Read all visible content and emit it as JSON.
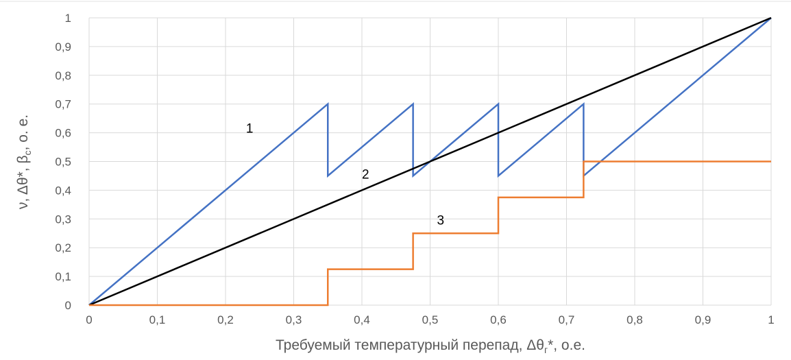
{
  "chart_data": {
    "type": "line",
    "xlabel": {
      "main": "Требуемый температурный перепад,  Δθ",
      "sub": "г",
      "tail": "*, о.е."
    },
    "ylabel": {
      "main": "ν, Δθ*, β",
      "sub": "c",
      "tail": ", о. е."
    },
    "xlim": [
      0,
      1
    ],
    "ylim": [
      0,
      1
    ],
    "grid": true,
    "x_ticks": [
      "0",
      "0,1",
      "0,2",
      "0,3",
      "0,4",
      "0,5",
      "0,6",
      "0,7",
      "0,8",
      "0,9",
      "1"
    ],
    "y_ticks": [
      "0",
      "0,1",
      "0,2",
      "0,3",
      "0,4",
      "0,5",
      "0,6",
      "0,7",
      "0,8",
      "0,9",
      "1"
    ],
    "series": [
      {
        "label": "1",
        "color": "#4472c4",
        "x": [
          0,
          0.35,
          0.35,
          0.475,
          0.475,
          0.6,
          0.6,
          0.725,
          0.725,
          1
        ],
        "y": [
          0,
          0.7,
          0.45,
          0.7,
          0.45,
          0.7,
          0.45,
          0.7,
          0.45,
          1
        ],
        "label_pos": [
          0.23,
          0.6
        ]
      },
      {
        "label": "2",
        "color": "#000000",
        "x": [
          0,
          1
        ],
        "y": [
          0,
          1
        ],
        "label_pos": [
          0.4,
          0.44
        ]
      },
      {
        "label": "3",
        "color": "#ed7d31",
        "x": [
          0,
          0.35,
          0.35,
          0.475,
          0.475,
          0.6,
          0.6,
          0.725,
          0.725,
          1
        ],
        "y": [
          0,
          0,
          0.125,
          0.125,
          0.25,
          0.25,
          0.375,
          0.375,
          0.5,
          0.5
        ],
        "label_pos": [
          0.51,
          0.28
        ]
      }
    ]
  }
}
